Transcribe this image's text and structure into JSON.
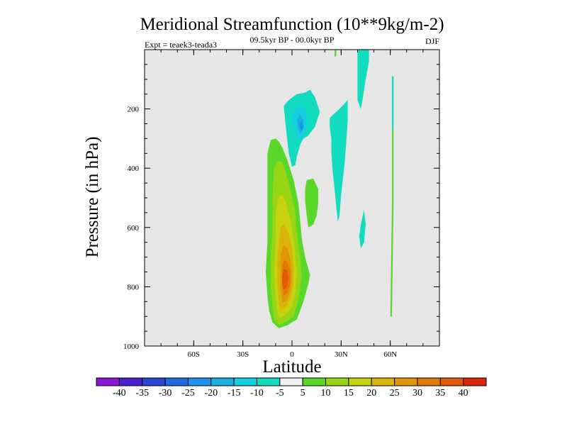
{
  "chart_data": {
    "type": "heatmap",
    "title": "Meridional Streamfunction (10**9kg/m-2)",
    "period": "09.5kyr BP - 00.0kyr BP",
    "experiment": "Expt = teaek3-teada3",
    "season": "DJF",
    "xlabel": "Latitude",
    "ylabel": "Pressure (in hPa)",
    "xlim": [
      -90,
      90
    ],
    "ylim": [
      1000,
      0
    ],
    "x_ticks": [
      {
        "value": -60,
        "label": "60S"
      },
      {
        "value": -30,
        "label": "30S"
      },
      {
        "value": 0,
        "label": "0"
      },
      {
        "value": 30,
        "label": "30N"
      },
      {
        "value": 60,
        "label": "60N"
      }
    ],
    "y_ticks": [
      {
        "value": 200,
        "label": "200"
      },
      {
        "value": 400,
        "label": "400"
      },
      {
        "value": 600,
        "label": "600"
      },
      {
        "value": 800,
        "label": "800"
      },
      {
        "value": 1000,
        "label": "1000"
      }
    ],
    "background_color": "#e6e6e6",
    "colorbar": {
      "levels": [
        -40,
        -35,
        -30,
        -25,
        -20,
        -15,
        -10,
        -5,
        5,
        10,
        15,
        20,
        25,
        30,
        35,
        40
      ],
      "labels": [
        "-40",
        "-35",
        "-30",
        "-25",
        "-20",
        "-15",
        "-10",
        "-5",
        "5",
        "10",
        "15",
        "20",
        "25",
        "30",
        "35",
        "40"
      ],
      "colors": [
        "#8a17d6",
        "#4a1fd0",
        "#2a46d4",
        "#1d6be0",
        "#1f8fe8",
        "#19b0e0",
        "#14cfe0",
        "#12dcc0",
        "#f0f0f0",
        "#5ad829",
        "#96d615",
        "#c8d20e",
        "#d8b508",
        "#e09606",
        "#e07a06",
        "#e05a06",
        "#d9260a"
      ]
    },
    "contours": [
      {
        "name": "positive-cell-5",
        "value": 5,
        "color": "#5ad829",
        "points": [
          [
            -8,
            940
          ],
          [
            -3,
            930
          ],
          [
            3,
            910
          ],
          [
            7,
            850
          ],
          [
            10,
            790
          ],
          [
            11,
            760
          ],
          [
            8,
            700
          ],
          [
            6,
            640
          ],
          [
            5,
            580
          ],
          [
            4,
            520
          ],
          [
            1,
            440
          ],
          [
            -3,
            370
          ],
          [
            -6,
            330
          ],
          [
            -8,
            310
          ],
          [
            -10,
            300
          ],
          [
            -13,
            305
          ],
          [
            -15,
            350
          ],
          [
            -15,
            450
          ],
          [
            -15,
            550
          ],
          [
            -15,
            650
          ],
          [
            -16,
            750
          ],
          [
            -15,
            830
          ],
          [
            -14,
            880
          ],
          [
            -12,
            920
          ]
        ]
      },
      {
        "name": "positive-cell-10",
        "value": 10,
        "color": "#96d615",
        "points": [
          [
            -8,
            930
          ],
          [
            -4,
            920
          ],
          [
            1,
            900
          ],
          [
            4,
            840
          ],
          [
            6,
            770
          ],
          [
            5,
            700
          ],
          [
            3,
            620
          ],
          [
            2,
            550
          ],
          [
            -1,
            470
          ],
          [
            -4,
            410
          ],
          [
            -6,
            380
          ],
          [
            -9,
            375
          ],
          [
            -11,
            400
          ],
          [
            -12,
            500
          ],
          [
            -12,
            600
          ],
          [
            -13,
            700
          ],
          [
            -13,
            800
          ],
          [
            -12,
            860
          ],
          [
            -11,
            910
          ]
        ]
      },
      {
        "name": "positive-cell-15",
        "value": 15,
        "color": "#c8d20e",
        "points": [
          [
            -8,
            905
          ],
          [
            -4,
            895
          ],
          [
            0,
            870
          ],
          [
            2,
            820
          ],
          [
            3,
            760
          ],
          [
            2,
            700
          ],
          [
            1,
            640
          ],
          [
            -1,
            570
          ],
          [
            -4,
            510
          ],
          [
            -6,
            490
          ],
          [
            -8,
            495
          ],
          [
            -10,
            550
          ],
          [
            -10,
            650
          ],
          [
            -11,
            750
          ],
          [
            -10,
            830
          ],
          [
            -9,
            880
          ]
        ]
      },
      {
        "name": "positive-cell-20",
        "value": 20,
        "color": "#d8b508",
        "points": [
          [
            -7,
            880
          ],
          [
            -4,
            870
          ],
          [
            -1,
            840
          ],
          [
            1,
            790
          ],
          [
            1,
            730
          ],
          [
            0,
            670
          ],
          [
            -2,
            620
          ],
          [
            -5,
            590
          ],
          [
            -7,
            600
          ],
          [
            -8,
            650
          ],
          [
            -9,
            720
          ],
          [
            -9,
            790
          ],
          [
            -8,
            850
          ]
        ]
      },
      {
        "name": "positive-cell-25",
        "value": 25,
        "color": "#e09606",
        "points": [
          [
            -6,
            855
          ],
          [
            -3,
            845
          ],
          [
            -1,
            810
          ],
          [
            0,
            760
          ],
          [
            -1,
            710
          ],
          [
            -3,
            670
          ],
          [
            -5,
            660
          ],
          [
            -7,
            690
          ],
          [
            -7,
            750
          ],
          [
            -7,
            810
          ]
        ]
      },
      {
        "name": "positive-cell-30",
        "value": 30,
        "color": "#e07a06",
        "points": [
          [
            -5,
            830
          ],
          [
            -3,
            820
          ],
          [
            -1,
            790
          ],
          [
            -1,
            750
          ],
          [
            -3,
            715
          ],
          [
            -5,
            710
          ],
          [
            -6,
            740
          ],
          [
            -6,
            790
          ]
        ]
      },
      {
        "name": "positive-cell-35",
        "value": 35,
        "color": "#e05a06",
        "points": [
          [
            -5,
            810
          ],
          [
            -3,
            800
          ],
          [
            -2,
            770
          ],
          [
            -3,
            745
          ],
          [
            -5,
            740
          ],
          [
            -6,
            765
          ],
          [
            -6,
            795
          ]
        ]
      },
      {
        "name": "mid-lat-band-5",
        "value": 5,
        "color": "#5ad829",
        "points": [
          [
            9,
            440
          ],
          [
            13,
            435
          ],
          [
            16,
            470
          ],
          [
            16,
            520
          ],
          [
            15,
            560
          ],
          [
            13,
            590
          ],
          [
            10,
            600
          ],
          [
            9,
            560
          ],
          [
            8,
            510
          ],
          [
            8,
            470
          ]
        ]
      },
      {
        "name": "upper-neg-5",
        "value": -5,
        "color": "#12dcc0",
        "points": [
          [
            -5,
            190
          ],
          [
            -2,
            170
          ],
          [
            3,
            150
          ],
          [
            8,
            145
          ],
          [
            11,
            135
          ],
          [
            14,
            160
          ],
          [
            17,
            210
          ],
          [
            14,
            260
          ],
          [
            10,
            290
          ],
          [
            7,
            300
          ],
          [
            5,
            320
          ],
          [
            3,
            360
          ],
          [
            2,
            390
          ],
          [
            0,
            395
          ],
          [
            -2,
            350
          ],
          [
            -3,
            300
          ],
          [
            -4,
            250
          ]
        ]
      },
      {
        "name": "upper-neg-10",
        "value": -10,
        "color": "#14cfe0",
        "points": [
          [
            0,
            225
          ],
          [
            3,
            200
          ],
          [
            6,
            190
          ],
          [
            9,
            210
          ],
          [
            9,
            255
          ],
          [
            7,
            290
          ],
          [
            5,
            305
          ],
          [
            3,
            290
          ],
          [
            1,
            260
          ]
        ]
      },
      {
        "name": "upper-neg-15",
        "value": -15,
        "color": "#19b0e0",
        "points": [
          [
            3,
            235
          ],
          [
            5,
            220
          ],
          [
            7,
            235
          ],
          [
            7,
            265
          ],
          [
            5,
            285
          ],
          [
            4,
            270
          ]
        ]
      },
      {
        "name": "upper-neg-20",
        "value": -20,
        "color": "#1f8fe8",
        "points": [
          [
            5,
            245
          ],
          [
            6,
            240
          ],
          [
            7,
            260
          ],
          [
            6,
            275
          ],
          [
            5,
            265
          ]
        ]
      },
      {
        "name": "high-neg-strip",
        "value": -5,
        "color": "#12dcc0",
        "points": [
          [
            40,
            0
          ],
          [
            47,
            0
          ],
          [
            47,
            40
          ],
          [
            45,
            100
          ],
          [
            43,
            170
          ],
          [
            42,
            200
          ],
          [
            40,
            170
          ],
          [
            40,
            80
          ]
        ]
      },
      {
        "name": "neg-column-30n",
        "value": -5,
        "color": "#12dcc0",
        "points": [
          [
            23,
            230
          ],
          [
            29,
            200
          ],
          [
            34,
            170
          ],
          [
            34,
            240
          ],
          [
            33,
            320
          ],
          [
            32,
            390
          ],
          [
            31,
            440
          ],
          [
            30,
            490
          ],
          [
            29,
            560
          ],
          [
            28,
            580
          ],
          [
            27,
            530
          ],
          [
            26,
            470
          ],
          [
            25,
            420
          ],
          [
            24,
            350
          ],
          [
            24,
            300
          ],
          [
            23,
            260
          ]
        ]
      },
      {
        "name": "neg-spot-45n",
        "value": -5,
        "color": "#12dcc0",
        "points": [
          [
            42,
            590
          ],
          [
            44,
            540
          ],
          [
            45,
            590
          ],
          [
            44,
            650
          ],
          [
            42,
            670
          ],
          [
            41,
            630
          ]
        ]
      },
      {
        "name": "pos-thin-25n",
        "value": 5,
        "color": "#5ad829",
        "points": [
          [
            26,
            0
          ],
          [
            27,
            0
          ],
          [
            27,
            20
          ],
          [
            26,
            25
          ]
        ]
      },
      {
        "name": "pos-line-62n",
        "value": 5,
        "color": "#5ad829",
        "points": [
          [
            61,
            270
          ],
          [
            62,
            270
          ],
          [
            62,
            520
          ],
          [
            61,
            900
          ],
          [
            60,
            900
          ],
          [
            61,
            520
          ]
        ]
      },
      {
        "name": "neg-line-62n",
        "value": -5,
        "color": "#12dcc0",
        "points": [
          [
            61,
            90
          ],
          [
            62,
            90
          ],
          [
            62,
            270
          ],
          [
            61,
            270
          ]
        ]
      }
    ]
  }
}
